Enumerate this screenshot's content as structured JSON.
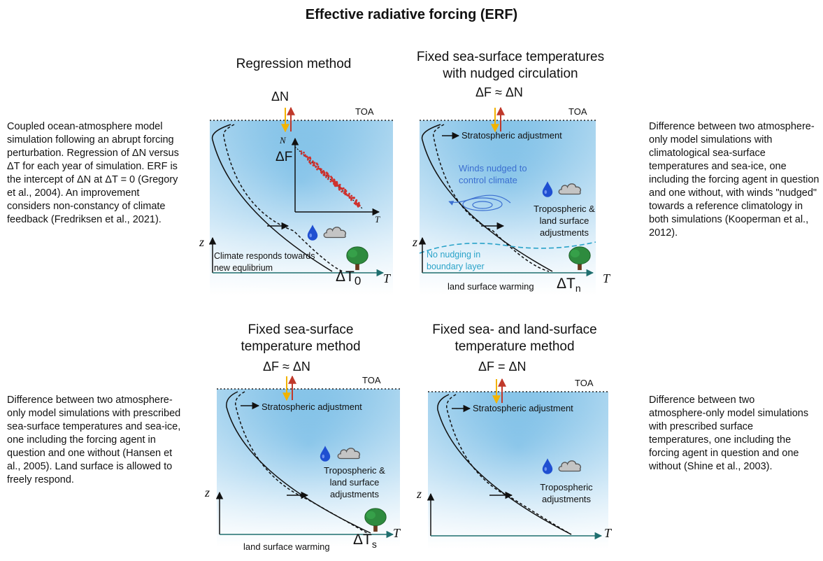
{
  "figure": {
    "title": "Effective radiative forcing (ERF)"
  },
  "panels": {
    "regression": {
      "title": "Regression method",
      "top_label": "ΔN",
      "toa": "TOA",
      "inset_y": "N",
      "inset_x": "T",
      "inset_intercept": "ΔF",
      "note": "Climate responds towards new equlibrium",
      "z": "z",
      "t": "T",
      "dt": "ΔT",
      "dt_sub": "0",
      "description": "Coupled ocean-atmosphere model simulation following an abrupt forcing perturbation. Regression of ΔN versus ΔT for each year of simulation. ERF is the intercept of ΔN at ΔT = 0 (Gregory et al., 2004). An improvement considers non-constancy of climate feedback (Fredriksen et al., 2021)."
    },
    "nudged": {
      "title_line1": "Fixed sea-surface temperatures",
      "title_line2": "with nudged circulation",
      "top_label": "ΔF ≈ ΔN",
      "toa": "TOA",
      "strat": "Stratospheric adjustment",
      "winds": "Winds nudged to control climate",
      "trop": "Tropospheric & land surface adjustments",
      "nonudge": "No nudging in boundary layer",
      "surface": "land surface warming",
      "z": "z",
      "t": "T",
      "dt": "ΔT",
      "dt_sub": "n",
      "description": "Difference between two atmosphere-only model simulations with climatological sea-surface temperatures and sea-ice, one including the forcing agent in question and one without, with winds \"nudged\" towards a reference climatology in both simulations (Kooperman et al., 2012)."
    },
    "fixed_sst": {
      "title_line1": "Fixed sea-surface",
      "title_line2": "temperature method",
      "top_label": "ΔF ≈ ΔN",
      "toa": "TOA",
      "strat": "Stratospheric adjustment",
      "trop": "Tropospheric & land surface adjustments",
      "surface": "land surface warming",
      "z": "z",
      "t": "T",
      "dt": "ΔT",
      "dt_sub": "s",
      "description": "Difference between two atmosphere-only model simulations with prescribed sea-surface temperatures and sea-ice, one including the forcing agent in question and one without (Hansen et al., 2005). Land surface is allowed to freely respond."
    },
    "fixed_sst_lst": {
      "title_line1": "Fixed sea- and land-surface",
      "title_line2": "temperature method",
      "top_label": "ΔF = ΔN",
      "toa": "TOA",
      "strat": "Stratospheric adjustment",
      "trop": "Tropospheric adjustments",
      "z": "z",
      "t": "T",
      "description": "Difference between two atmosphere-only model simulations with prescribed surface temperatures, one including the forcing agent in question and one without (Shine et al., 2003)."
    }
  },
  "colors": {
    "sky_top": "#5aaee0",
    "sky_bottom": "#ffffff",
    "downward_arrow": "#f2b300",
    "upward_arrow": "#c0392b",
    "regression_points": "#d0312d",
    "winds": "#3b6fd0",
    "boundary_layer": "#2aa3c9",
    "axis_arrow": "#1f6f6f"
  }
}
